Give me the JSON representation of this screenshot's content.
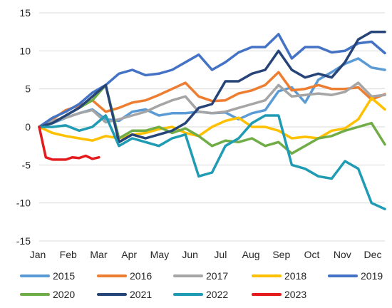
{
  "chart_data": {
    "type": "line",
    "title": "",
    "xlabel": "",
    "ylabel": "",
    "ylim": [
      -15,
      15
    ],
    "yticks": [
      15,
      10,
      5,
      0,
      -5,
      -10,
      -15
    ],
    "xticks": [
      "Jan",
      "Feb",
      "Mar",
      "Apr",
      "May",
      "Jun",
      "Jul",
      "Aug",
      "Sep",
      "Oct",
      "Nov",
      "Dec"
    ],
    "grid": "horizontal",
    "legend_position": "bottom",
    "series": [
      {
        "name": "2015",
        "color": "#5B9BD5",
        "x": [
          0,
          2,
          4,
          6,
          8,
          10,
          12,
          14,
          16,
          18,
          20,
          22,
          24,
          26,
          28,
          30,
          32,
          34,
          36,
          38,
          40,
          42,
          44,
          46,
          48,
          50,
          52
        ],
        "y": [
          0,
          0.5,
          1.2,
          1.8,
          2.3,
          1.0,
          0.8,
          2.0,
          2.3,
          1.5,
          1.8,
          1.8,
          2.0,
          1.8,
          1.9,
          1.0,
          1.8,
          2.2,
          4.7,
          5.2,
          3.2,
          6.2,
          7.2,
          8.3,
          9.0,
          7.8,
          7.5
        ]
      },
      {
        "name": "2016",
        "color": "#ED7D31",
        "x": [
          0,
          2,
          4,
          6,
          8,
          10,
          12,
          14,
          16,
          18,
          20,
          22,
          24,
          26,
          28,
          30,
          32,
          34,
          36,
          38,
          40,
          42,
          44,
          46,
          48,
          50,
          52
        ],
        "y": [
          0,
          1.0,
          2.2,
          2.8,
          3.5,
          2.0,
          2.5,
          3.2,
          3.5,
          4.2,
          5.0,
          5.8,
          4.0,
          3.4,
          3.5,
          4.4,
          4.8,
          5.5,
          7.2,
          4.8,
          5.0,
          5.5,
          5.0,
          5.0,
          5.2,
          3.6,
          4.3
        ]
      },
      {
        "name": "2017",
        "color": "#A5A5A5",
        "x": [
          0,
          2,
          4,
          6,
          8,
          10,
          12,
          14,
          16,
          18,
          20,
          22,
          24,
          26,
          28,
          30,
          32,
          34,
          36,
          38,
          40,
          42,
          44,
          46,
          48,
          50,
          52
        ],
        "y": [
          0,
          0.8,
          1.2,
          1.8,
          2.2,
          0.6,
          1.0,
          1.5,
          2.0,
          2.8,
          3.5,
          4.0,
          2.0,
          1.8,
          2.0,
          2.5,
          3.0,
          3.5,
          5.5,
          4.0,
          4.2,
          4.4,
          4.2,
          4.6,
          5.8,
          4.0,
          4.2
        ]
      },
      {
        "name": "2018",
        "color": "#FFC000",
        "x": [
          0,
          2,
          4,
          6,
          8,
          10,
          12,
          14,
          16,
          18,
          20,
          22,
          24,
          26,
          28,
          30,
          32,
          34,
          36,
          38,
          40,
          42,
          44,
          46,
          48,
          50,
          52
        ],
        "y": [
          0,
          -0.8,
          -1.2,
          -1.5,
          -1.8,
          -1.2,
          -1.5,
          -1.0,
          -0.8,
          -0.3,
          0,
          -0.8,
          -1.2,
          0,
          0.8,
          1.2,
          0,
          0,
          -0.5,
          -1.5,
          -1.3,
          -1.5,
          -0.5,
          -0.2,
          1.0,
          3.8,
          2.3
        ]
      },
      {
        "name": "2019",
        "color": "#4472C4",
        "x": [
          0,
          2,
          4,
          6,
          8,
          10,
          12,
          14,
          16,
          18,
          20,
          22,
          24,
          26,
          28,
          30,
          32,
          34,
          36,
          38,
          40,
          42,
          44,
          46,
          48,
          50,
          52
        ],
        "y": [
          0,
          1.2,
          2.0,
          3.0,
          4.5,
          5.5,
          7.0,
          7.5,
          6.8,
          7.0,
          7.5,
          8.5,
          9.5,
          7.5,
          8.5,
          9.8,
          10.5,
          10.5,
          12.2,
          9.0,
          10.5,
          10.5,
          9.8,
          10.0,
          11.0,
          11.2,
          9.7
        ]
      },
      {
        "name": "2020",
        "color": "#70AD47",
        "x": [
          0,
          2,
          4,
          6,
          8,
          10,
          12,
          14,
          16,
          18,
          20,
          22,
          24,
          26,
          28,
          30,
          32,
          34,
          36,
          38,
          40,
          42,
          44,
          46,
          48,
          50,
          52
        ],
        "y": [
          0,
          0.5,
          1.5,
          2.5,
          3.5,
          5.5,
          -1.5,
          -0.5,
          -0.5,
          0,
          -0.8,
          -0.2,
          -1.2,
          -2.5,
          -1.8,
          -2.0,
          -1.5,
          -2.5,
          -2.0,
          -3.5,
          -2.5,
          -1.5,
          -1.2,
          -0.5,
          0,
          0.5,
          -2.3
        ]
      },
      {
        "name": "2021",
        "color": "#264478",
        "x": [
          0,
          2,
          4,
          6,
          8,
          10,
          12,
          14,
          16,
          18,
          20,
          22,
          24,
          26,
          28,
          30,
          32,
          34,
          36,
          38,
          40,
          42,
          44,
          46,
          48,
          50,
          52
        ],
        "y": [
          0,
          0.5,
          1.5,
          2.5,
          4.0,
          5.5,
          -2.0,
          -1.0,
          -1.5,
          -1.0,
          -0.5,
          0.5,
          2.5,
          3.0,
          6.0,
          6.0,
          7.0,
          7.5,
          10.0,
          7.5,
          6.5,
          7.0,
          6.5,
          8.5,
          11.5,
          12.5,
          12.5
        ]
      },
      {
        "name": "2022",
        "color": "#1F9BB3",
        "x": [
          0,
          2,
          4,
          6,
          8,
          10,
          12,
          14,
          16,
          18,
          20,
          22,
          24,
          26,
          28,
          30,
          32,
          34,
          36,
          38,
          40,
          42,
          44,
          46,
          48,
          50,
          52
        ],
        "y": [
          0,
          0,
          0.2,
          -0.5,
          0,
          1.5,
          -2.5,
          -1.5,
          -2.0,
          -2.5,
          -1.5,
          -1.0,
          -6.5,
          -6.0,
          -2.5,
          -1.5,
          0.5,
          1.5,
          1.5,
          -5.0,
          -5.5,
          -6.5,
          -6.8,
          -4.5,
          -5.5,
          -10.0,
          -10.8
        ]
      },
      {
        "name": "2023",
        "color": "#E41A1C",
        "x": [
          0,
          1,
          2,
          3,
          4,
          5,
          6,
          7,
          8,
          9
        ],
        "y": [
          0,
          -4.0,
          -4.3,
          -4.3,
          -4.3,
          -4.0,
          -4.1,
          -3.8,
          -4.2,
          -4.0
        ]
      }
    ]
  }
}
